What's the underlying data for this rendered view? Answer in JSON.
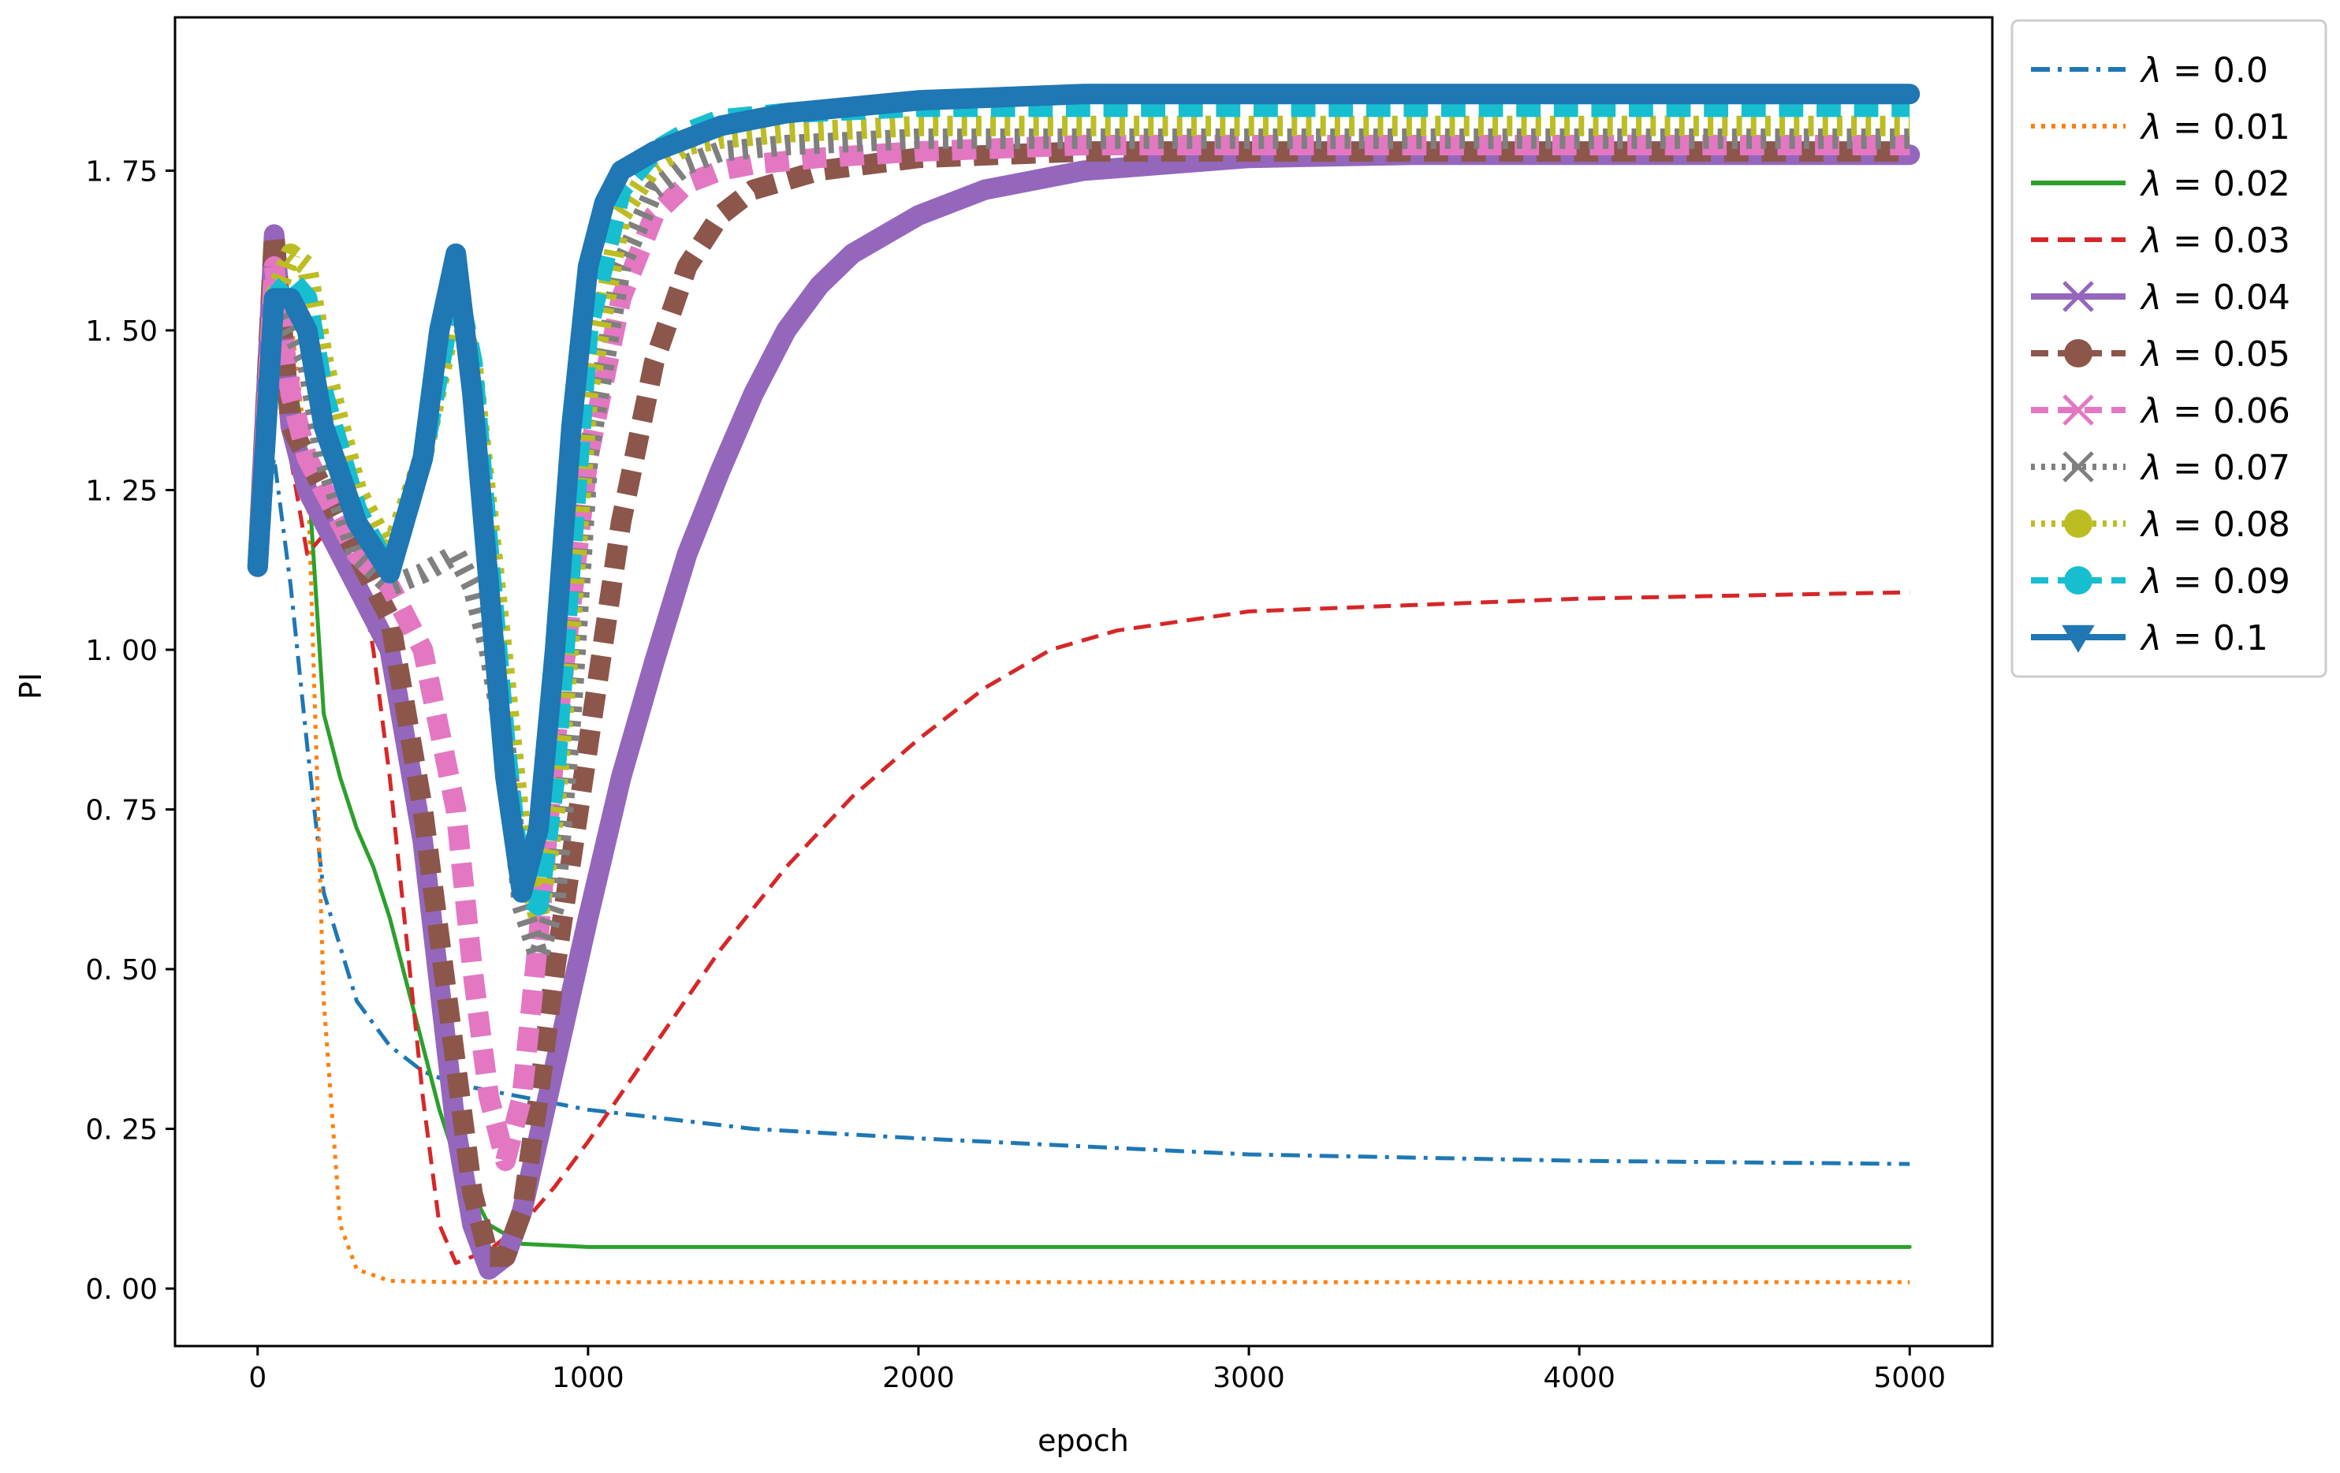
{
  "chart_data": {
    "type": "line",
    "title": "",
    "xlabel": "epoch",
    "ylabel": "PI",
    "xlim": [
      -250,
      5250
    ],
    "ylim": [
      -0.09,
      1.99
    ],
    "xticks": [
      0,
      1000,
      2000,
      3000,
      4000,
      5000
    ],
    "xtick_labels": [
      "0",
      "1000",
      "2000",
      "3000",
      "4000",
      "5000"
    ],
    "yticks": [
      0.0,
      0.25,
      0.5,
      0.75,
      1.0,
      1.25,
      1.5,
      1.75
    ],
    "ytick_labels": [
      "0. 00",
      "0. 25",
      "0. 50",
      "0. 75",
      "1. 00",
      "1. 25",
      "1. 50",
      "1. 75"
    ],
    "grid": false,
    "legend_position": "outside-top-right",
    "series": [
      {
        "name": "λ = 0.0",
        "label_prefix": "λ",
        "label_value": "0.0",
        "color": "#1f77b4",
        "dash": "dashdot",
        "marker": "none",
        "width": "thin",
        "x": [
          0,
          50,
          100,
          150,
          200,
          300,
          400,
          500,
          600,
          800,
          1000,
          1500,
          2000,
          3000,
          4000,
          5000
        ],
        "y": [
          1.13,
          1.3,
          1.1,
          0.85,
          0.62,
          0.45,
          0.38,
          0.34,
          0.32,
          0.3,
          0.28,
          0.25,
          0.235,
          0.21,
          0.2,
          0.195
        ]
      },
      {
        "name": "λ = 0.01",
        "label_prefix": "λ",
        "label_value": "0.01",
        "color": "#ff7f0e",
        "dash": "dotted",
        "marker": "none",
        "width": "thin",
        "x": [
          0,
          50,
          100,
          150,
          180,
          200,
          250,
          300,
          400,
          600,
          1000,
          2000,
          3000,
          4000,
          5000
        ],
        "y": [
          1.13,
          1.5,
          1.52,
          1.3,
          0.8,
          0.45,
          0.1,
          0.03,
          0.012,
          0.01,
          0.01,
          0.01,
          0.01,
          0.01,
          0.01
        ]
      },
      {
        "name": "λ = 0.02",
        "label_prefix": "λ",
        "label_value": "0.02",
        "color": "#2ca02c",
        "dash": "solid",
        "marker": "none",
        "width": "thin",
        "x": [
          0,
          50,
          100,
          150,
          200,
          250,
          300,
          350,
          400,
          450,
          500,
          550,
          600,
          700,
          800,
          1000,
          2000,
          3000,
          4000,
          5000
        ],
        "y": [
          1.13,
          1.55,
          1.45,
          1.3,
          0.9,
          0.8,
          0.72,
          0.66,
          0.58,
          0.48,
          0.38,
          0.28,
          0.2,
          0.1,
          0.07,
          0.065,
          0.065,
          0.065,
          0.065,
          0.065
        ]
      },
      {
        "name": "λ = 0.03",
        "label_prefix": "λ",
        "label_value": "0.03",
        "color": "#d62728",
        "dash": "dashed",
        "marker": "none",
        "width": "thin",
        "x": [
          0,
          50,
          100,
          150,
          200,
          250,
          300,
          350,
          400,
          450,
          500,
          550,
          600,
          650,
          700,
          800,
          900,
          1000,
          1200,
          1400,
          1600,
          1800,
          2000,
          2200,
          2400,
          2600,
          3000,
          3500,
          4000,
          4500,
          5000
        ],
        "y": [
          1.13,
          1.55,
          1.3,
          1.15,
          1.18,
          1.2,
          1.15,
          1.0,
          0.8,
          0.55,
          0.3,
          0.1,
          0.04,
          0.05,
          0.06,
          0.1,
          0.16,
          0.23,
          0.38,
          0.53,
          0.66,
          0.77,
          0.86,
          0.94,
          1.0,
          1.03,
          1.06,
          1.07,
          1.08,
          1.085,
          1.09
        ]
      },
      {
        "name": "λ = 0.04",
        "label_prefix": "λ",
        "label_value": "0.04",
        "color": "#9467bd",
        "dash": "solid",
        "marker": "x",
        "width": "thick",
        "x": [
          0,
          50,
          100,
          150,
          200,
          300,
          400,
          500,
          600,
          650,
          700,
          750,
          800,
          900,
          1000,
          1100,
          1200,
          1300,
          1400,
          1500,
          1600,
          1700,
          1800,
          2000,
          2200,
          2500,
          3000,
          3500,
          4000,
          4500,
          5000
        ],
        "y": [
          1.13,
          1.65,
          1.35,
          1.25,
          1.2,
          1.1,
          1.0,
          0.7,
          0.25,
          0.1,
          0.03,
          0.05,
          0.12,
          0.35,
          0.58,
          0.8,
          0.98,
          1.15,
          1.28,
          1.4,
          1.5,
          1.57,
          1.62,
          1.68,
          1.72,
          1.75,
          1.77,
          1.775,
          1.775,
          1.775,
          1.775
        ]
      },
      {
        "name": "λ = 0.05",
        "label_prefix": "λ",
        "label_value": "0.05",
        "color": "#8c564b",
        "dash": "dashed",
        "marker": "o",
        "width": "thick",
        "x": [
          0,
          50,
          100,
          150,
          200,
          300,
          400,
          500,
          600,
          650,
          700,
          750,
          800,
          850,
          900,
          1000,
          1100,
          1200,
          1300,
          1400,
          1500,
          1700,
          2000,
          2500,
          3000,
          4000,
          5000
        ],
        "y": [
          1.13,
          1.65,
          1.35,
          1.3,
          1.25,
          1.15,
          1.05,
          0.75,
          0.35,
          0.15,
          0.05,
          0.05,
          0.12,
          0.3,
          0.5,
          0.85,
          1.2,
          1.45,
          1.6,
          1.68,
          1.72,
          1.75,
          1.77,
          1.78,
          1.78,
          1.78,
          1.78
        ]
      },
      {
        "name": "λ = 0.06",
        "label_prefix": "λ",
        "label_value": "0.06",
        "color": "#e377c2",
        "dash": "dashed",
        "marker": "x",
        "width": "thick",
        "x": [
          0,
          50,
          100,
          150,
          200,
          300,
          400,
          500,
          600,
          650,
          700,
          750,
          800,
          850,
          900,
          1000,
          1100,
          1200,
          1300,
          1400,
          1500,
          1700,
          2000,
          2500,
          3000,
          4000,
          5000
        ],
        "y": [
          1.13,
          1.6,
          1.4,
          1.3,
          1.25,
          1.15,
          1.1,
          1.0,
          0.75,
          0.5,
          0.3,
          0.2,
          0.3,
          0.55,
          0.85,
          1.3,
          1.55,
          1.68,
          1.73,
          1.75,
          1.76,
          1.77,
          1.78,
          1.79,
          1.79,
          1.79,
          1.79
        ]
      },
      {
        "name": "λ = 0.07",
        "label_prefix": "λ",
        "label_value": "0.07",
        "color": "#7f7f7f",
        "dash": "dotted",
        "marker": "x",
        "width": "thick",
        "x": [
          0,
          50,
          100,
          150,
          200,
          300,
          400,
          500,
          600,
          650,
          700,
          750,
          800,
          850,
          900,
          950,
          1000,
          1100,
          1200,
          1300,
          1400,
          1600,
          2000,
          3000,
          4000,
          5000
        ],
        "y": [
          1.13,
          1.55,
          1.5,
          1.45,
          1.3,
          1.15,
          1.1,
          1.12,
          1.15,
          1.1,
          1.0,
          0.85,
          0.6,
          0.52,
          0.6,
          0.9,
          1.3,
          1.6,
          1.72,
          1.76,
          1.78,
          1.79,
          1.8,
          1.8,
          1.8,
          1.8
        ]
      },
      {
        "name": "λ = 0.08",
        "label_prefix": "λ",
        "label_value": "0.08",
        "color": "#bcbd22",
        "dash": "dotted",
        "marker": "o",
        "width": "thick",
        "x": [
          0,
          50,
          100,
          150,
          200,
          300,
          400,
          500,
          600,
          650,
          700,
          750,
          800,
          850,
          900,
          950,
          1000,
          1100,
          1200,
          1300,
          1400,
          1600,
          2000,
          3000,
          4000,
          5000
        ],
        "y": [
          1.13,
          1.55,
          1.62,
          1.6,
          1.45,
          1.25,
          1.15,
          1.3,
          1.55,
          1.45,
          1.2,
          0.95,
          0.7,
          0.58,
          0.75,
          1.05,
          1.4,
          1.68,
          1.76,
          1.79,
          1.8,
          1.81,
          1.82,
          1.82,
          1.82,
          1.82
        ]
      },
      {
        "name": "λ = 0.09",
        "label_prefix": "λ",
        "label_value": "0.09",
        "color": "#17becf",
        "dash": "dashed",
        "marker": "o",
        "width": "thick",
        "x": [
          0,
          50,
          100,
          150,
          200,
          300,
          400,
          500,
          600,
          650,
          700,
          750,
          800,
          850,
          900,
          950,
          1000,
          1100,
          1200,
          1300,
          1400,
          1600,
          2000,
          3000,
          4000,
          5000
        ],
        "y": [
          1.13,
          1.55,
          1.58,
          1.55,
          1.4,
          1.22,
          1.12,
          1.3,
          1.58,
          1.45,
          1.15,
          0.85,
          0.62,
          0.6,
          0.8,
          1.15,
          1.5,
          1.72,
          1.78,
          1.81,
          1.83,
          1.84,
          1.85,
          1.85,
          1.85,
          1.85
        ]
      },
      {
        "name": "λ = 0.1",
        "label_prefix": "λ",
        "label_value": "0.1",
        "color": "#1f77b4",
        "dash": "solid",
        "marker": "v",
        "width": "thick",
        "x": [
          0,
          50,
          100,
          150,
          200,
          300,
          400,
          500,
          550,
          600,
          650,
          700,
          750,
          800,
          850,
          900,
          950,
          1000,
          1050,
          1100,
          1200,
          1300,
          1400,
          1600,
          2000,
          2500,
          3000,
          4000,
          5000
        ],
        "y": [
          1.13,
          1.55,
          1.55,
          1.5,
          1.35,
          1.2,
          1.12,
          1.3,
          1.5,
          1.62,
          1.4,
          1.1,
          0.8,
          0.62,
          0.72,
          1.0,
          1.35,
          1.6,
          1.7,
          1.75,
          1.78,
          1.8,
          1.82,
          1.84,
          1.86,
          1.87,
          1.87,
          1.87,
          1.87
        ]
      }
    ]
  }
}
